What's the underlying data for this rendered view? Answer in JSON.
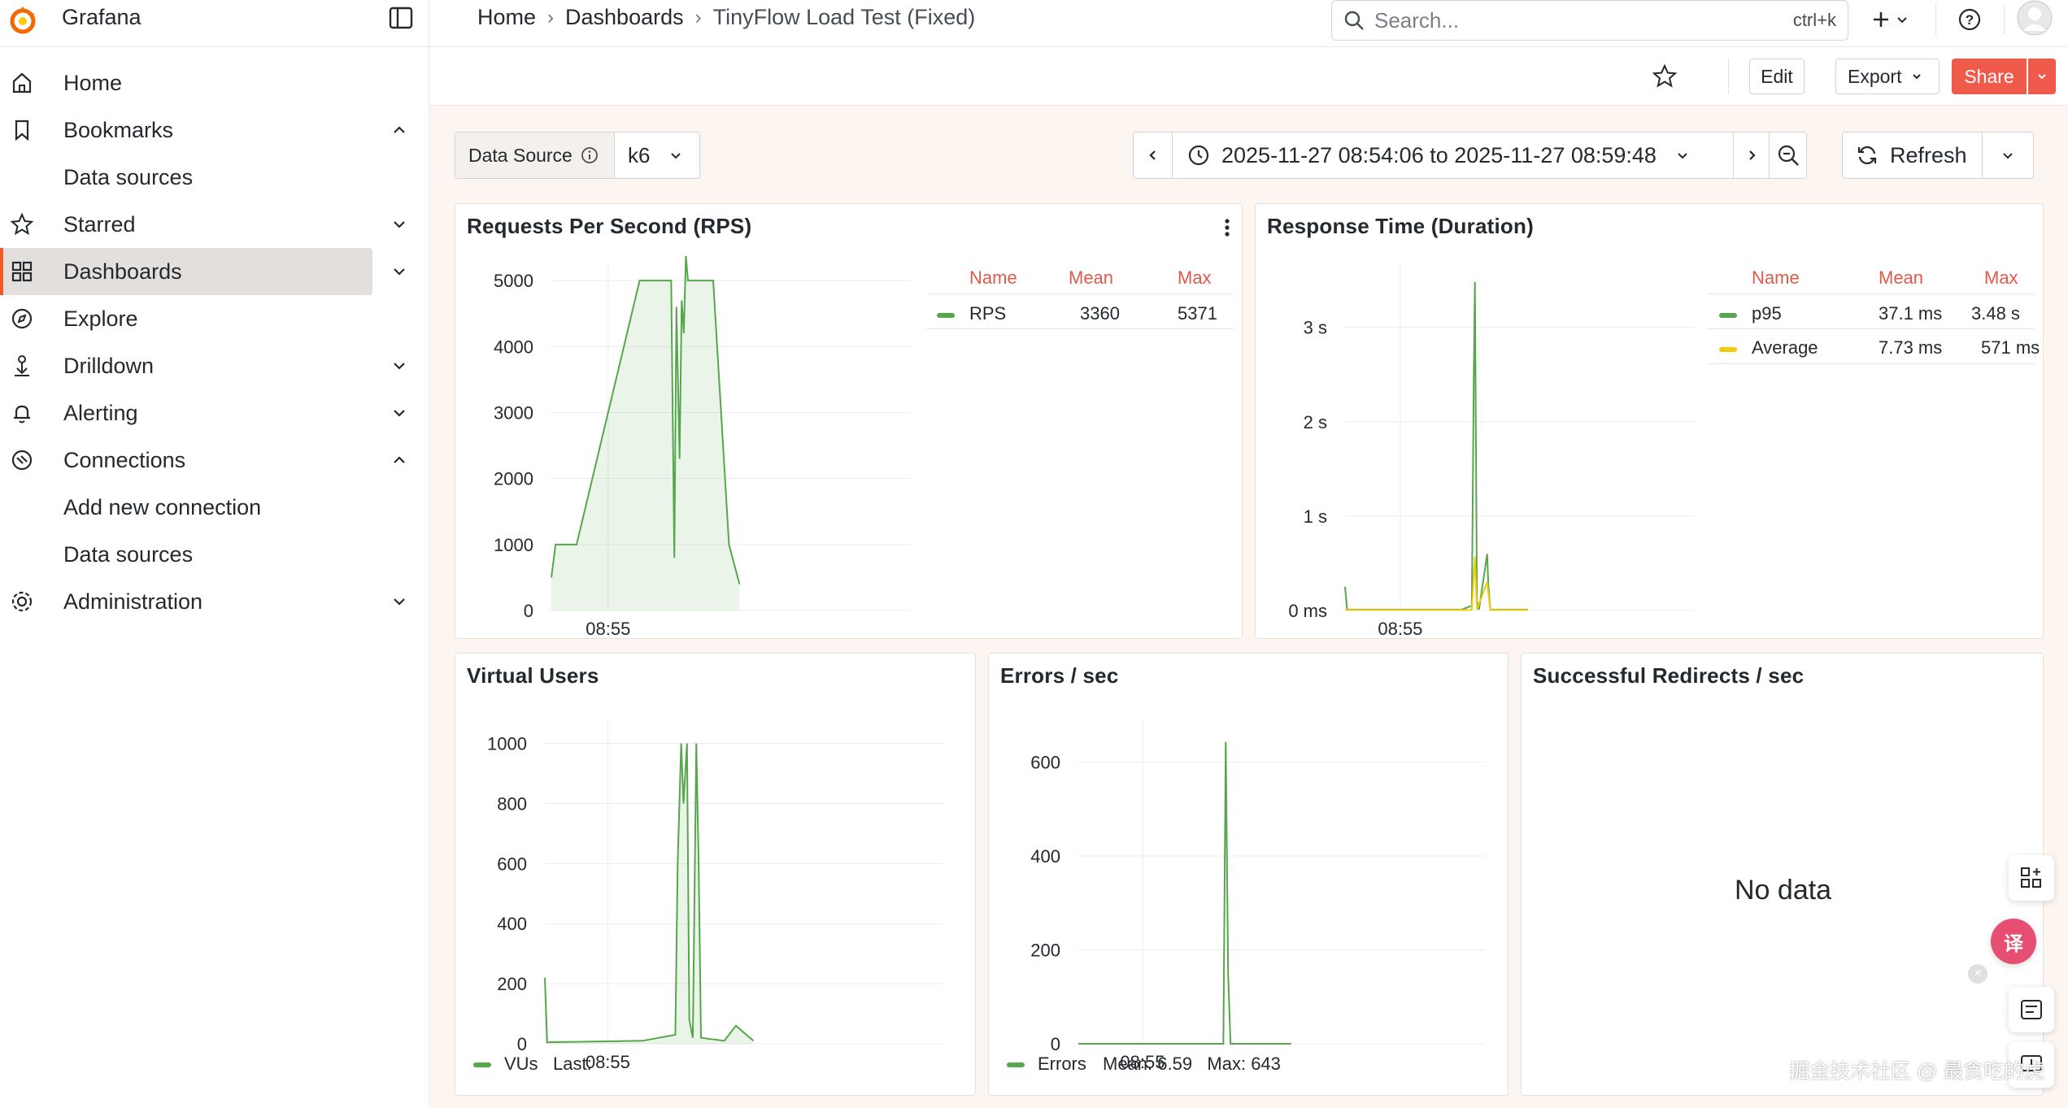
{
  "app": {
    "brand": "Grafana"
  },
  "breadcrumb": {
    "home": "Home",
    "dashboards": "Dashboards",
    "current": "TinyFlow Load Test (Fixed)"
  },
  "search": {
    "placeholder": "Search...",
    "shortcut": "ctrl+k"
  },
  "sidebar": {
    "items": [
      {
        "label": "Home",
        "icon": "home-icon"
      },
      {
        "label": "Bookmarks",
        "icon": "bookmark-icon",
        "expanded": true
      },
      {
        "label": "Starred",
        "icon": "star-icon",
        "expanded": false
      },
      {
        "label": "Dashboards",
        "icon": "dashboards-icon",
        "active": true,
        "expanded": false
      },
      {
        "label": "Explore",
        "icon": "compass-icon"
      },
      {
        "label": "Drilldown",
        "icon": "drilldown-icon",
        "expanded": false
      },
      {
        "label": "Alerting",
        "icon": "bell-icon",
        "expanded": false
      },
      {
        "label": "Connections",
        "icon": "connections-icon",
        "expanded": true
      },
      {
        "label": "Administration",
        "icon": "gear-icon",
        "expanded": false
      }
    ],
    "bookmarks_sub": [
      "Data sources"
    ],
    "connections_sub": [
      "Add new connection",
      "Data sources"
    ]
  },
  "toolbar": {
    "edit": "Edit",
    "export": "Export",
    "share": "Share"
  },
  "variables": {
    "label": "Data Source",
    "value": "k6"
  },
  "timepicker": {
    "range": "2025-11-27 08:54:06 to 2025-11-27 08:59:48",
    "refresh": "Refresh"
  },
  "colors": {
    "accent": "#f05a28",
    "share": "#f05a4a",
    "green": "#56a64b",
    "yellow": "#f2cc0c",
    "legend_header": "#e05a4a"
  },
  "panels": {
    "rps": {
      "title": "Requests Per Second (RPS)",
      "legend": {
        "headers": [
          "Name",
          "Mean",
          "Max"
        ],
        "rows": [
          {
            "name": "RPS",
            "mean": "3360",
            "max": "5371",
            "color": "#56a64b"
          }
        ]
      },
      "y_ticks": [
        "0",
        "1000",
        "2000",
        "3000",
        "4000",
        "5000"
      ],
      "x_tick": "08:55"
    },
    "duration": {
      "title": "Response Time (Duration)",
      "legend": {
        "headers": [
          "Name",
          "Mean",
          "Max"
        ],
        "rows": [
          {
            "name": "p95",
            "mean": "37.1 ms",
            "max": "3.48 s",
            "color": "#56a64b"
          },
          {
            "name": "Average",
            "mean": "7.73 ms",
            "max": "571 ms",
            "color": "#f2cc0c"
          }
        ]
      },
      "y_ticks": [
        "0 ms",
        "1 s",
        "2 s",
        "3 s"
      ],
      "x_tick": "08:55"
    },
    "vus": {
      "title": "Virtual Users",
      "y_ticks": [
        "0",
        "200",
        "400",
        "600",
        "800",
        "1000"
      ],
      "x_tick": "08:55",
      "legend": {
        "name": "VUs",
        "stats": "Last:"
      }
    },
    "errors": {
      "title": "Errors / sec",
      "y_ticks": [
        "0",
        "200",
        "400",
        "600"
      ],
      "x_tick": "08:55",
      "legend": {
        "name": "Errors",
        "stats": "Mean: 6.59   Max: 643"
      }
    },
    "redirects": {
      "title": "Successful Redirects / sec",
      "empty": "No data"
    }
  },
  "chart_data": [
    {
      "type": "area",
      "title": "Requests Per Second (RPS)",
      "ylim": [
        0,
        5371
      ],
      "x": [
        "08:54:06",
        "08:54:10",
        "08:54:30",
        "08:55:30",
        "08:55:50",
        "08:56:00",
        "08:56:03",
        "08:56:05",
        "08:56:08",
        "08:56:10",
        "08:56:12",
        "08:56:14",
        "08:56:16",
        "08:56:20",
        "08:56:40",
        "08:56:55",
        "08:57:05"
      ],
      "series": [
        {
          "name": "RPS",
          "values": [
            500,
            1000,
            1000,
            5000,
            5000,
            5000,
            800,
            4600,
            2300,
            4700,
            4200,
            5371,
            5000,
            5000,
            5000,
            1000,
            400
          ]
        }
      ]
    },
    {
      "type": "line",
      "title": "Response Time (Duration)",
      "y_unit": "s",
      "ylim": [
        0,
        3.48
      ],
      "series": [
        {
          "name": "p95",
          "x": [
            "08:54:06",
            "08:54:08",
            "08:56:00",
            "08:56:10",
            "08:56:12",
            "08:56:13",
            "08:56:15",
            "08:56:17",
            "08:56:25",
            "08:56:26",
            "08:56:28",
            "08:56:40",
            "08:57:05"
          ],
          "values": [
            0.25,
            0.01,
            0.01,
            0.05,
            2.6,
            3.48,
            0.1,
            0.01,
            0.6,
            0.3,
            0.01,
            0.01,
            0.01
          ]
        },
        {
          "name": "Average",
          "x": [
            "08:54:06",
            "08:56:10",
            "08:56:13",
            "08:56:15",
            "08:56:25",
            "08:56:28",
            "08:57:05"
          ],
          "values": [
            0.005,
            0.005,
            0.571,
            0.01,
            0.3,
            0.005,
            0.005
          ]
        }
      ]
    },
    {
      "type": "area",
      "title": "Virtual Users",
      "ylim": [
        0,
        1000
      ],
      "x": [
        "08:54:06",
        "08:54:08",
        "08:55:30",
        "08:55:58",
        "08:56:00",
        "08:56:03",
        "08:56:05",
        "08:56:08",
        "08:56:10",
        "08:56:13",
        "08:56:16",
        "08:56:18",
        "08:56:20",
        "08:56:40",
        "08:56:50",
        "08:57:05"
      ],
      "series": [
        {
          "name": "VUs",
          "values": [
            220,
            5,
            10,
            30,
            600,
            1000,
            800,
            1000,
            80,
            20,
            1000,
            600,
            20,
            10,
            60,
            10
          ]
        }
      ]
    },
    {
      "type": "line",
      "title": "Errors / sec",
      "ylim": [
        0,
        643
      ],
      "x": [
        "08:54:06",
        "08:56:00",
        "08:56:08",
        "08:56:10",
        "08:56:12",
        "08:56:14",
        "08:56:16",
        "08:57:05"
      ],
      "series": [
        {
          "name": "Errors",
          "values": [
            0,
            0,
            0,
            643,
            150,
            0,
            0,
            0
          ]
        }
      ]
    }
  ],
  "watermark": "掘金技术社区 @ 最贪吃的虎"
}
